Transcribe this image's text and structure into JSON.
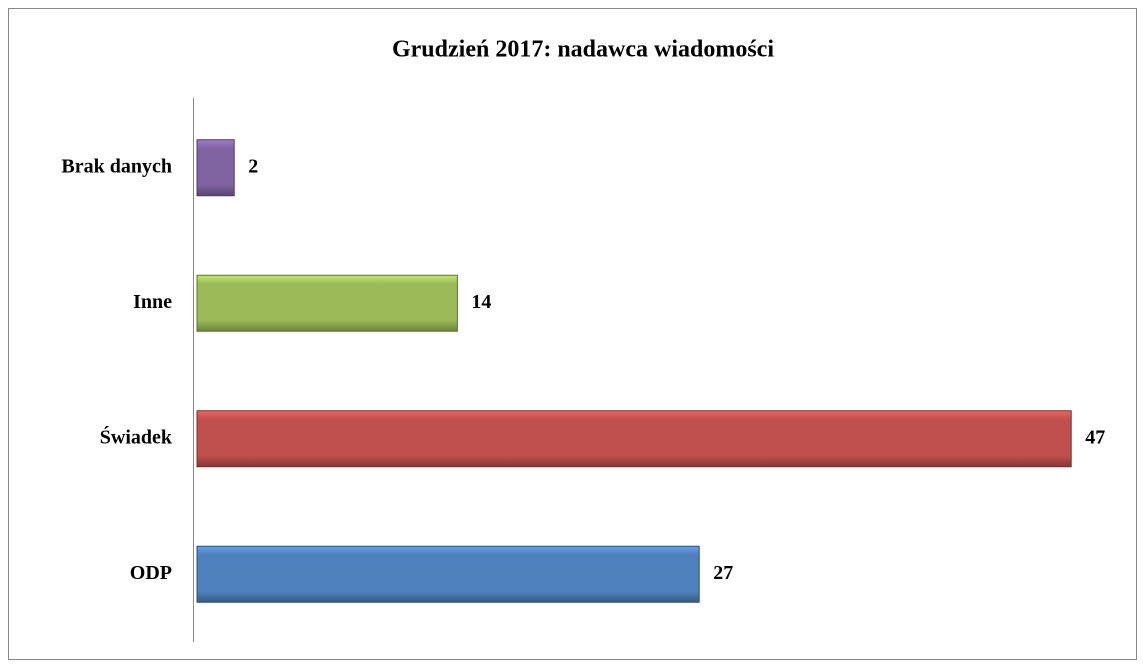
{
  "chart_data": {
    "type": "bar",
    "orientation": "horizontal",
    "title": "Grudzień 2017: nadawca wiadomości",
    "categories": [
      "ODP",
      "Świadek",
      "Inne",
      "Brak danych"
    ],
    "values": [
      27,
      47,
      14,
      2
    ],
    "colors": [
      "#4f81bd",
      "#c0504d",
      "#9bbb59",
      "#8064a2"
    ],
    "xlim": [
      0,
      50
    ]
  }
}
